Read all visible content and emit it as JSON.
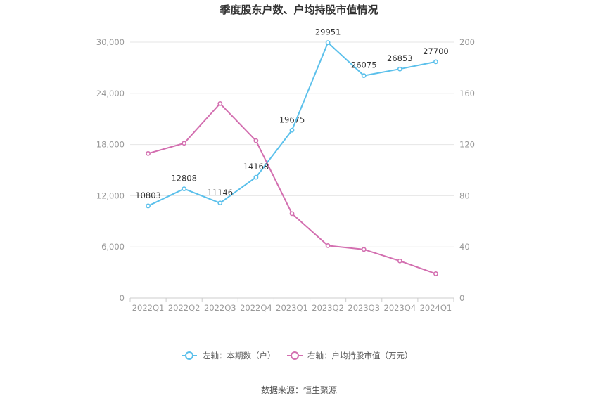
{
  "chart_data": {
    "type": "line",
    "title": "季度股东户数、户均持股市值情况",
    "categories": [
      "2022Q1",
      "2022Q2",
      "2022Q3",
      "2022Q4",
      "2023Q1",
      "2023Q2",
      "2023Q3",
      "2023Q4",
      "2024Q1"
    ],
    "y_left": {
      "ticks": [
        "0",
        "6,000",
        "12,000",
        "18,000",
        "24,000",
        "30,000"
      ],
      "min": 0,
      "max": 30000
    },
    "y_right": {
      "ticks": [
        "0",
        "40",
        "80",
        "120",
        "160",
        "200"
      ],
      "min": 0,
      "max": 200
    },
    "series": [
      {
        "name": "左轴：本期数（户）",
        "axis": "left",
        "color": "#5bc0eb",
        "values": [
          10803,
          12808,
          11146,
          14168,
          19675,
          29951,
          26075,
          26853,
          27700
        ],
        "labels": [
          "10803",
          "12808",
          "11146",
          "14168",
          "19675",
          "29951",
          "26075",
          "26853",
          "27700"
        ]
      },
      {
        "name": "右轴：户均持股市值（万元）",
        "axis": "right",
        "color": "#d36fb0",
        "values": [
          113,
          121,
          152,
          123,
          66,
          41,
          38,
          29,
          19
        ]
      }
    ],
    "legend_position": "bottom",
    "grid": true
  },
  "source": "数据来源：恒生聚源"
}
